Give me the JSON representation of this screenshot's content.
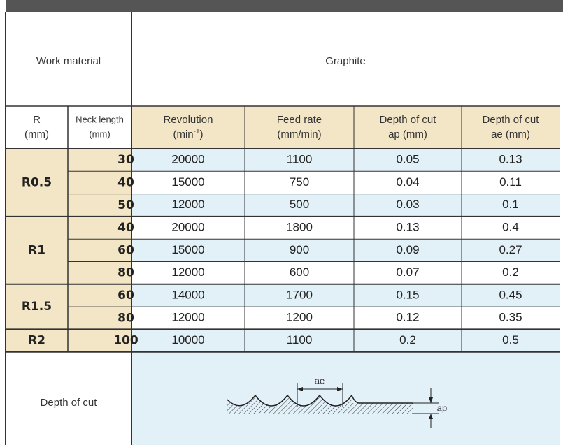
{
  "header": {
    "work_material": "Work material",
    "material": "Graphite",
    "col_r": [
      "R",
      "(mm)"
    ],
    "col_neck": [
      "Neck length",
      "(mm)"
    ],
    "col_rev": {
      "line1": "Revolution",
      "open": "(min",
      "sup": "-1",
      "close": ")"
    },
    "col_feed": [
      "Feed rate",
      "(mm/min)"
    ],
    "col_ap": [
      "Depth of cut",
      "ap (mm)"
    ],
    "col_ae": [
      "Depth of cut",
      "ae (mm)"
    ]
  },
  "groups": [
    {
      "r": "R0.5",
      "rows": [
        [
          30,
          20000,
          1100,
          0.05,
          0.13
        ],
        [
          40,
          15000,
          750,
          0.04,
          0.11
        ],
        [
          50,
          12000,
          500,
          0.03,
          0.1
        ]
      ]
    },
    {
      "r": "R1",
      "rows": [
        [
          40,
          20000,
          1800,
          0.13,
          0.4
        ],
        [
          60,
          15000,
          900,
          0.09,
          0.27
        ],
        [
          80,
          12000,
          600,
          0.07,
          0.2
        ]
      ]
    },
    {
      "r": "R1.5",
      "rows": [
        [
          60,
          14000,
          1700,
          0.15,
          0.45
        ],
        [
          80,
          12000,
          1200,
          0.12,
          0.35
        ]
      ]
    },
    {
      "r": "R2",
      "rows": [
        [
          100,
          10000,
          1100,
          0.2,
          0.5
        ]
      ]
    }
  ],
  "footer": {
    "label": "Depth of cut",
    "ae": "ae",
    "ap": "ap"
  }
}
